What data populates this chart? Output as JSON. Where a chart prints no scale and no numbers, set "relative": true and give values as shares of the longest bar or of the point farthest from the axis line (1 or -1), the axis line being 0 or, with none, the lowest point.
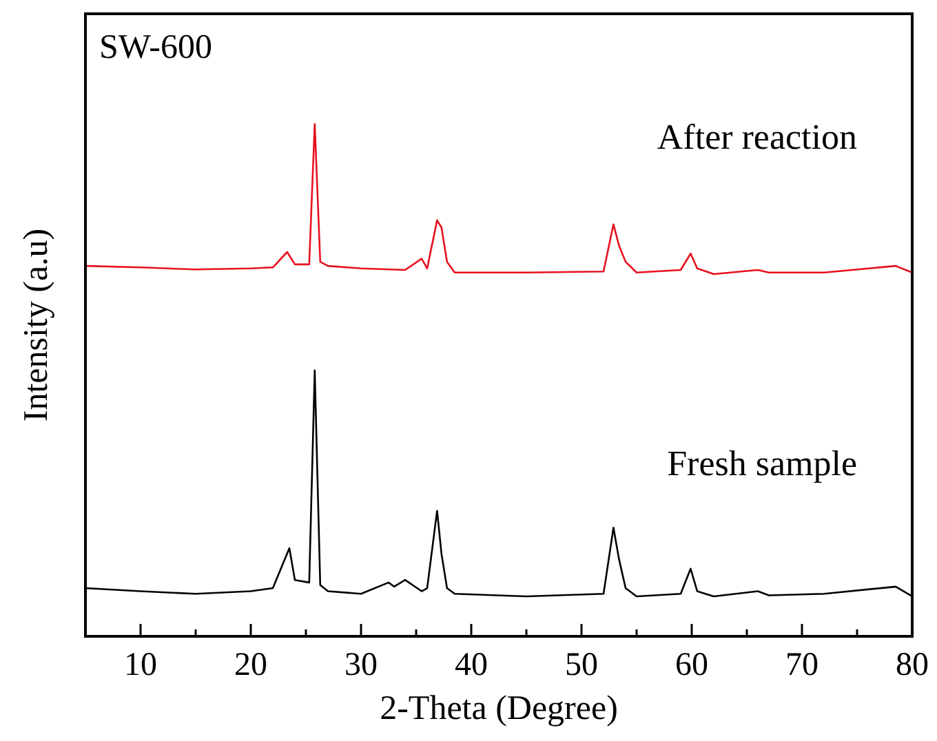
{
  "chart_data": {
    "type": "line",
    "relative": true,
    "xlabel": "2-Theta (Degree)",
    "ylabel": "Intensity (a.u)",
    "annotations": [
      "SW-600"
    ],
    "xlim": [
      5,
      80
    ],
    "xticks": [
      {
        "value": 5,
        "label": null
      },
      10,
      {
        "value": 15,
        "label": null
      },
      20,
      {
        "value": 25,
        "label": null
      },
      30,
      {
        "value": 35,
        "label": null
      },
      40,
      {
        "value": 45,
        "label": null
      },
      50,
      {
        "value": 55,
        "label": null
      },
      60,
      {
        "value": 65,
        "label": null
      },
      70,
      {
        "value": 75,
        "label": null
      },
      80
    ],
    "marker": "none",
    "line_style": "solid",
    "series": [
      {
        "name": "After reaction",
        "color": "#e8101e",
        "x": [
          5,
          10,
          15,
          20,
          22,
          23.3,
          24,
          25.3,
          25.8,
          26.3,
          27,
          30,
          34,
          35.5,
          36,
          36.9,
          37.3,
          37.8,
          38.5,
          45,
          52,
          52.9,
          53.4,
          54,
          55,
          59,
          59.9,
          60.5,
          62,
          66,
          67,
          72,
          78.5,
          80
        ],
        "values": [
          0.723,
          0.72,
          0.716,
          0.718,
          0.72,
          0.75,
          0.726,
          0.726,
          1,
          0.731,
          0.723,
          0.718,
          0.715,
          0.737,
          0.718,
          0.812,
          0.798,
          0.731,
          0.71,
          0.71,
          0.712,
          0.804,
          0.763,
          0.731,
          0.71,
          0.715,
          0.747,
          0.718,
          0.707,
          0.715,
          0.71,
          0.71,
          0.723,
          0.71
        ]
      },
      {
        "name": "Fresh sample",
        "color": "#000000",
        "x": [
          5,
          10,
          15,
          20,
          22,
          23.5,
          24,
          25.3,
          25.8,
          26.3,
          27,
          30,
          32.5,
          33,
          34,
          35.5,
          36,
          36.9,
          37.3,
          37.8,
          38.5,
          45,
          52,
          52.9,
          53.4,
          54,
          55,
          59,
          59.9,
          60.5,
          62,
          66,
          67,
          72,
          78.5,
          80
        ],
        "values": [
          0.094,
          0.088,
          0.083,
          0.088,
          0.094,
          0.172,
          0.11,
          0.105,
          0.519,
          0.1,
          0.088,
          0.083,
          0.105,
          0.097,
          0.11,
          0.088,
          0.094,
          0.245,
          0.161,
          0.094,
          0.083,
          0.078,
          0.083,
          0.212,
          0.151,
          0.094,
          0.078,
          0.083,
          0.132,
          0.088,
          0.078,
          0.088,
          0.08,
          0.083,
          0.097,
          0.078
        ]
      }
    ]
  }
}
